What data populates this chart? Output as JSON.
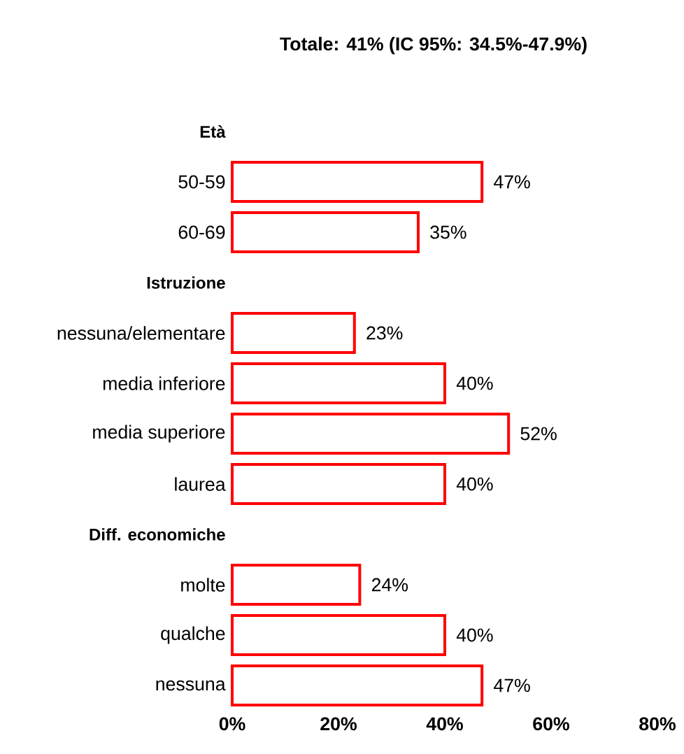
{
  "chart_data": {
    "type": "bar",
    "orientation": "horizontal",
    "title": "Totale: 41% (IC 95%: 34.5%-47.9%)",
    "categories": [
      "Età",
      "50-59",
      "60-69",
      "Istruzione",
      "nessuna/elementare",
      "media inferiore",
      "media superiore",
      "laurea",
      "Diff. economiche",
      "molte",
      "qualche",
      "nessuna"
    ],
    "values": [
      null,
      47,
      35,
      null,
      23,
      40,
      52,
      40,
      null,
      24,
      40,
      47
    ],
    "value_labels": [
      null,
      "47%",
      "35%",
      null,
      "23%",
      "40%",
      "52%",
      "40%",
      null,
      "24%",
      "40%",
      "47%"
    ],
    "color": "#ff0000",
    "xlim": [
      0,
      80
    ],
    "xticks": [
      {
        "value": 0,
        "label": "0%"
      },
      {
        "value": 20,
        "label": "20%"
      },
      {
        "value": 40,
        "label": "40%"
      },
      {
        "value": 60,
        "label": "60%"
      },
      {
        "value": 80,
        "label": "80%"
      }
    ],
    "grid": false
  }
}
